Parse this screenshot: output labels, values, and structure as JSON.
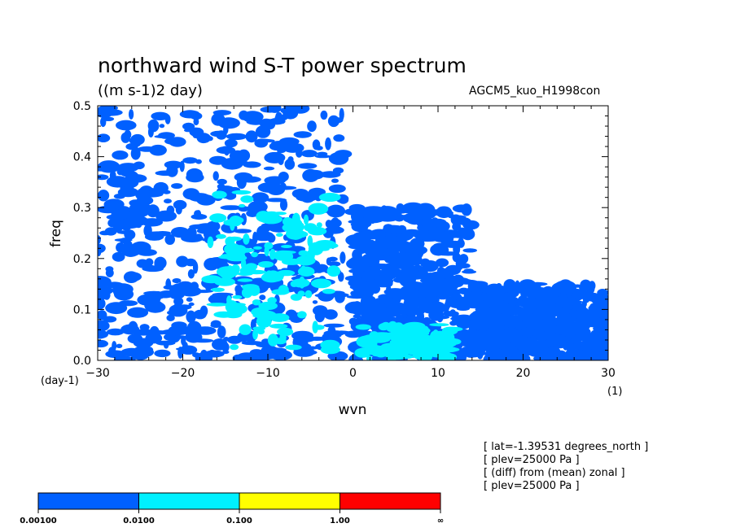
{
  "header": {
    "title": "northward wind S-T power spectrum",
    "units": "((m s-1)2 day)",
    "experiment": "AGCM5_kuo_H1998con"
  },
  "footnotes": [
    "[ lat=-1.39531 degrees_north ]",
    "[ plev=25000 Pa ]",
    "[ (diff) from (mean) zonal ]",
    "[ plev=25000 Pa ]"
  ],
  "colorbar": {
    "colors": [
      "#0060ff",
      "#00f0ff",
      "#ffff00",
      "#ff0000"
    ],
    "labels": [
      "0.00100",
      "0.0100",
      "0.100",
      "1.00",
      "∞"
    ]
  },
  "chart_data": {
    "type": "heatmap",
    "title": "northward wind S-T power spectrum",
    "xlabel": "wvn",
    "ylabel": "freq",
    "x_unit_label": "(1)",
    "y_unit_label": "(day-1)",
    "xlim": [
      -30,
      30
    ],
    "ylim": [
      0,
      0.5
    ],
    "xticks": [
      -30,
      -20,
      -10,
      0,
      10,
      20,
      30
    ],
    "yticks": [
      0.0,
      0.1,
      0.2,
      0.3,
      0.4,
      0.5
    ],
    "xtick_labels": [
      "−30",
      "−20",
      "−10",
      "0",
      "10",
      "20",
      "30"
    ],
    "ytick_labels": [
      "0.0",
      "0.1",
      "0.2",
      "0.3",
      "0.4",
      "0.5"
    ],
    "levels": [
      0.001,
      0.01,
      0.1,
      1.0
    ],
    "level_colors": [
      "#0060ff",
      "#00f0ff",
      "#ffff00",
      "#ff0000"
    ],
    "shaded_regions": [
      {
        "level": "0.001-0.01",
        "xrange": [
          -30,
          -1
        ],
        "yrange": [
          0,
          0.5
        ]
      },
      {
        "level": "0.001-0.01",
        "xrange": [
          0,
          14
        ],
        "yrange": [
          0,
          0.3
        ]
      },
      {
        "level": "0.001-0.01",
        "xrange": [
          14,
          30
        ],
        "yrange": [
          0,
          0.15
        ]
      },
      {
        "level": "0.01-0.1",
        "xrange": [
          -17,
          -2
        ],
        "yrange": [
          0.02,
          0.33
        ]
      },
      {
        "level": "0.01-0.1",
        "xrange": [
          1,
          12
        ],
        "yrange": [
          0.0,
          0.07
        ]
      }
    ]
  }
}
